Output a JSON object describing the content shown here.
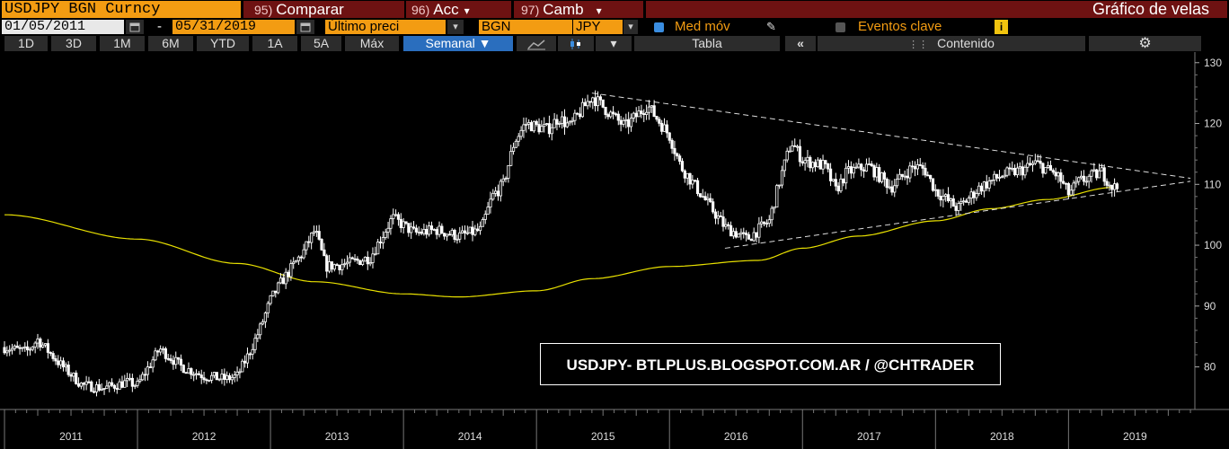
{
  "header": {
    "ticker": "USDJPY BGN Curncy",
    "menus": [
      {
        "num": "95)",
        "label": "Comparar",
        "caret": ""
      },
      {
        "num": "96)",
        "label": "Acc",
        "caret": "▾"
      },
      {
        "num": "97)",
        "label": "Camb",
        "caret": "▾"
      }
    ],
    "title": "Gráfico de velas"
  },
  "params": {
    "start_date": "01/05/2011",
    "dash": "-",
    "end_date": "05/31/2019",
    "price_field": "Último preci",
    "source": "BGN",
    "currency": "JPY",
    "moving_avg_label": "Med móv",
    "events_label": "Eventos clave",
    "info_icon": "i"
  },
  "toolbar": {
    "periods": [
      "1D",
      "3D",
      "1M",
      "6M",
      "YTD",
      "1A",
      "5A",
      "Máx"
    ],
    "frequency": "Semanal ▼",
    "table_label": "Tabla",
    "collapse": "«",
    "content_label": "Contenido"
  },
  "colors": {
    "accent": "#f39c12",
    "menu_bg": "#6e1212",
    "moving_avg": "#e8e000",
    "selected": "#2a6ebe"
  },
  "watermark": "USDJPY- BTLPLUS.BLOGSPOT.COM.AR / @CHTRADER",
  "chart_data": {
    "type": "candlestick",
    "title": "",
    "ylim": [
      73,
      131
    ],
    "y_ticks": [
      80,
      90,
      100,
      110,
      120,
      130
    ],
    "x_ticks": [
      "2011",
      "2012",
      "2013",
      "2014",
      "2015",
      "2016",
      "2017",
      "2018",
      "2019"
    ],
    "price_series": {
      "name": "USDJPY",
      "points": [
        [
          "2011-01",
          83.2
        ],
        [
          "2011-03",
          82.5
        ],
        [
          "2011-04",
          84.5
        ],
        [
          "2011-06",
          80.5
        ],
        [
          "2011-08",
          77.0
        ],
        [
          "2011-10",
          76.5
        ],
        [
          "2011-12",
          77.5
        ],
        [
          "2012-01",
          77.0
        ],
        [
          "2012-03",
          83.0
        ],
        [
          "2012-05",
          80.0
        ],
        [
          "2012-07",
          78.5
        ],
        [
          "2012-09",
          78.0
        ],
        [
          "2012-10",
          78.5
        ],
        [
          "2012-11",
          82.0
        ],
        [
          "2012-12",
          86.0
        ],
        [
          "2013-01",
          91.0
        ],
        [
          "2013-02",
          94.0
        ],
        [
          "2013-04",
          99.0
        ],
        [
          "2013-05",
          102.5
        ],
        [
          "2013-06",
          96.5
        ],
        [
          "2013-08",
          97.0
        ],
        [
          "2013-10",
          98.0
        ],
        [
          "2013-12",
          104.5
        ],
        [
          "2014-02",
          102.0
        ],
        [
          "2014-04",
          102.5
        ],
        [
          "2014-06",
          101.5
        ],
        [
          "2014-08",
          102.5
        ],
        [
          "2014-09",
          108.0
        ],
        [
          "2014-10",
          110.0
        ],
        [
          "2014-11",
          117.0
        ],
        [
          "2014-12",
          120.0
        ],
        [
          "2015-02",
          119.0
        ],
        [
          "2015-03",
          121.0
        ],
        [
          "2015-04",
          119.5
        ],
        [
          "2015-06",
          124.5
        ],
        [
          "2015-08",
          121.0
        ],
        [
          "2015-09",
          119.5
        ],
        [
          "2015-11",
          123.0
        ],
        [
          "2015-12",
          120.5
        ],
        [
          "2016-01",
          118.0
        ],
        [
          "2016-02",
          113.0
        ],
        [
          "2016-04",
          108.0
        ],
        [
          "2016-06",
          103.0
        ],
        [
          "2016-08",
          101.0
        ],
        [
          "2016-10",
          104.0
        ],
        [
          "2016-11",
          111.0
        ],
        [
          "2016-12",
          117.0
        ],
        [
          "2017-01",
          114.0
        ],
        [
          "2017-03",
          113.0
        ],
        [
          "2017-04",
          109.0
        ],
        [
          "2017-05",
          112.0
        ],
        [
          "2017-07",
          113.0
        ],
        [
          "2017-09",
          109.5
        ],
        [
          "2017-11",
          113.0
        ],
        [
          "2017-12",
          112.5
        ],
        [
          "2018-01",
          109.0
        ],
        [
          "2018-03",
          106.0
        ],
        [
          "2018-05",
          109.5
        ],
        [
          "2018-07",
          111.5
        ],
        [
          "2018-09",
          112.5
        ],
        [
          "2018-10",
          113.5
        ],
        [
          "2018-12",
          111.5
        ],
        [
          "2019-01",
          108.5
        ],
        [
          "2019-02",
          110.5
        ],
        [
          "2019-04",
          112.0
        ],
        [
          "2019-05",
          109.5
        ]
      ]
    },
    "moving_average": {
      "name": "Med móv",
      "points": [
        [
          "2011-01",
          105.0
        ],
        [
          "2012-01",
          101.0
        ],
        [
          "2012-10",
          97.0
        ],
        [
          "2013-05",
          94.0
        ],
        [
          "2014-01",
          92.0
        ],
        [
          "2014-06",
          91.5
        ],
        [
          "2015-01",
          92.5
        ],
        [
          "2015-06",
          94.5
        ],
        [
          "2016-01",
          96.5
        ],
        [
          "2016-09",
          97.5
        ],
        [
          "2017-01",
          99.5
        ],
        [
          "2017-06",
          101.5
        ],
        [
          "2018-01",
          104.0
        ],
        [
          "2018-06",
          106.0
        ],
        [
          "2018-11",
          107.5
        ],
        [
          "2019-05",
          109.5
        ]
      ]
    },
    "trendlines": [
      {
        "from": [
          "2015-06",
          125.0
        ],
        "to": [
          "2019-12",
          111.0
        ]
      },
      {
        "from": [
          "2016-06",
          99.5
        ],
        "to": [
          "2019-12",
          110.5
        ]
      }
    ]
  }
}
